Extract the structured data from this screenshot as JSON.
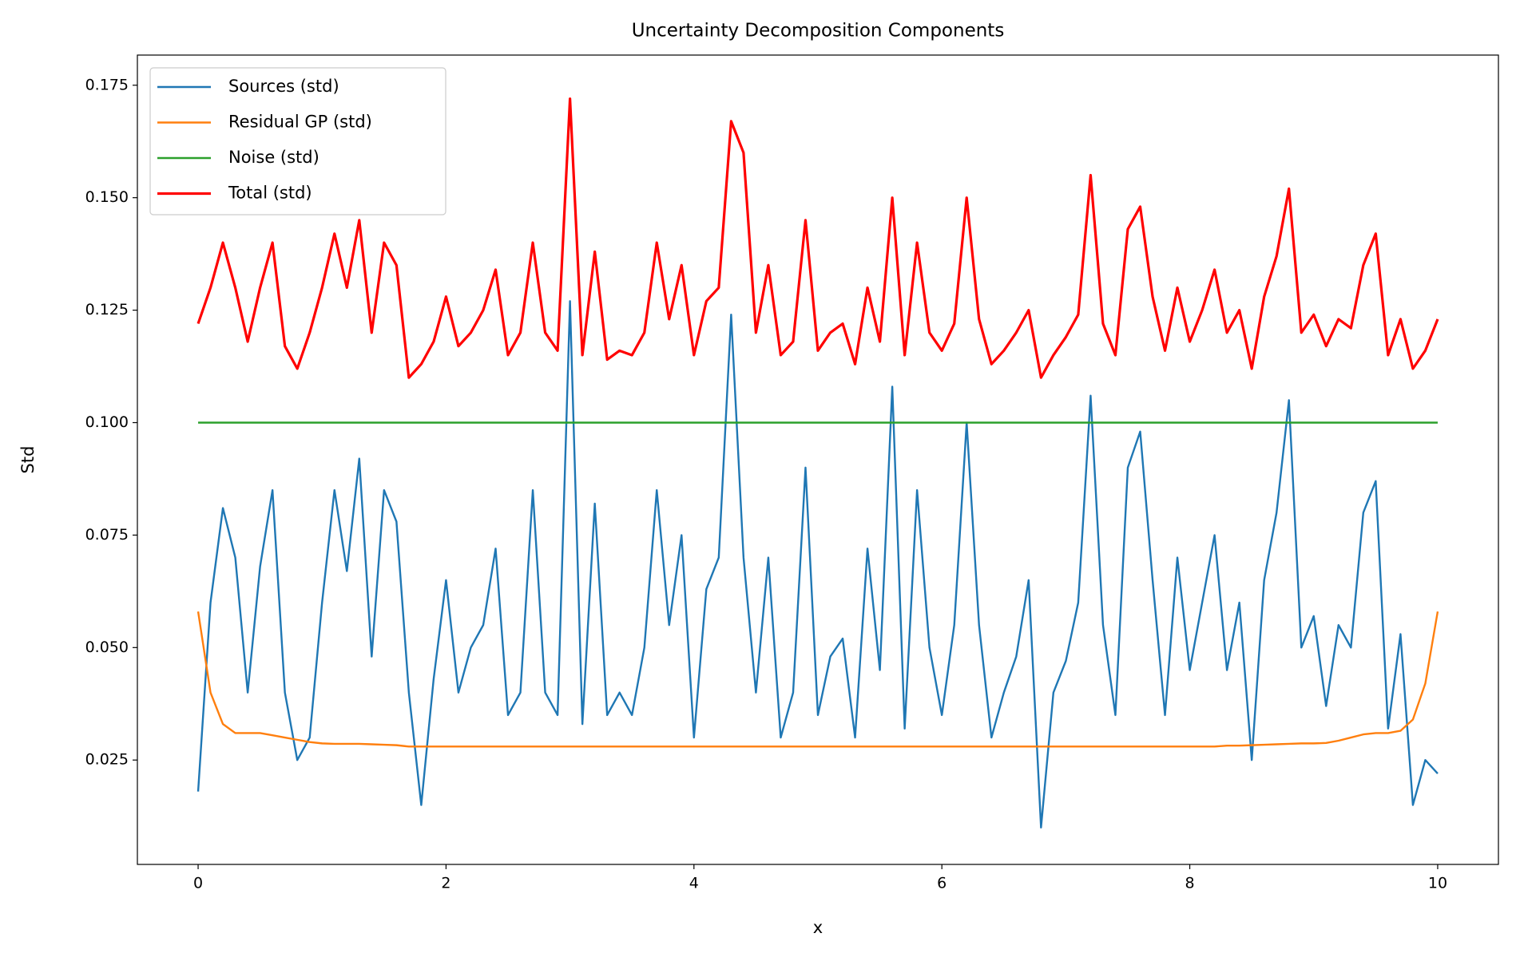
{
  "chart_data": {
    "type": "line",
    "title": "Uncertainty Decomposition Components",
    "xlabel": "x",
    "ylabel": "Std",
    "legend": "upper left",
    "grid": false,
    "xlim": [
      -0.49,
      10.49
    ],
    "ylim": [
      0.0018,
      0.1817
    ],
    "xticks": [
      0,
      2,
      4,
      6,
      8,
      10
    ],
    "yticks": [
      0.025,
      {
        "value": 0.05,
        "label": "0.050"
      },
      0.075,
      {
        "value": 0.1,
        "label": "0.100"
      },
      0.125,
      {
        "value": 0.15,
        "label": "0.150"
      },
      0.175
    ],
    "x": [
      0,
      0.1,
      0.2,
      0.3,
      0.4,
      0.5,
      0.6,
      0.7,
      0.8,
      0.9,
      1,
      1.1,
      1.2,
      1.3,
      1.4,
      1.5,
      1.6,
      1.7,
      1.8,
      1.9,
      2,
      2.1,
      2.2,
      2.3,
      2.4,
      2.5,
      2.6,
      2.7,
      2.8,
      2.9,
      3,
      3.1,
      3.2,
      3.3,
      3.4,
      3.5,
      3.6,
      3.7,
      3.8,
      3.9,
      4,
      4.1,
      4.2,
      4.3,
      4.4,
      4.5,
      4.6,
      4.7,
      4.8,
      4.9,
      5,
      5.1,
      5.2,
      5.3,
      5.4,
      5.5,
      5.6,
      5.7,
      5.8,
      5.9,
      6,
      6.1,
      6.2,
      6.3,
      6.4,
      6.5,
      6.6,
      6.7,
      6.8,
      6.9,
      7,
      7.1,
      7.2,
      7.3,
      7.4,
      7.5,
      7.6,
      7.7,
      7.8,
      7.9,
      8,
      8.1,
      8.2,
      8.3,
      8.4,
      8.5,
      8.6,
      8.7,
      8.8,
      8.9,
      9,
      9.1,
      9.2,
      9.3,
      9.4,
      9.5,
      9.6,
      9.7,
      9.8,
      9.9,
      10
    ],
    "series": [
      {
        "name": "Sources (std)",
        "color": "#1f77b4",
        "width": 2.4,
        "values": [
          0.018,
          0.06,
          0.081,
          0.07,
          0.04,
          0.068,
          0.085,
          0.04,
          0.025,
          0.03,
          0.06,
          0.085,
          0.067,
          0.092,
          0.048,
          0.085,
          0.078,
          0.04,
          0.015,
          0.043,
          0.065,
          0.04,
          0.05,
          0.055,
          0.072,
          0.035,
          0.04,
          0.085,
          0.04,
          0.035,
          0.127,
          0.033,
          0.082,
          0.035,
          0.04,
          0.035,
          0.05,
          0.085,
          0.055,
          0.075,
          0.03,
          0.063,
          0.07,
          0.124,
          0.07,
          0.04,
          0.07,
          0.03,
          0.04,
          0.09,
          0.035,
          0.048,
          0.052,
          0.03,
          0.072,
          0.045,
          0.108,
          0.032,
          0.085,
          0.05,
          0.035,
          0.055,
          0.1,
          0.055,
          0.03,
          0.04,
          0.048,
          0.065,
          0.01,
          0.04,
          0.047,
          0.06,
          0.106,
          0.055,
          0.035,
          0.09,
          0.098,
          0.065,
          0.035,
          0.07,
          0.045,
          0.06,
          0.075,
          0.045,
          0.06,
          0.025,
          0.065,
          0.08,
          0.105,
          0.05,
          0.057,
          0.037,
          0.055,
          0.05,
          0.08,
          0.087,
          0.032,
          0.053,
          0.015,
          0.025,
          0.022
        ]
      },
      {
        "name": "Residual GP (std)",
        "color": "#ff7f0e",
        "width": 2.4,
        "values": [
          0.058,
          0.04,
          0.033,
          0.031,
          0.031,
          0.031,
          0.0305,
          0.03,
          0.0295,
          0.029,
          0.0287,
          0.0286,
          0.0286,
          0.0286,
          0.0285,
          0.0284,
          0.0283,
          0.028,
          0.028,
          0.028,
          0.028,
          0.028,
          0.028,
          0.028,
          0.028,
          0.028,
          0.028,
          0.028,
          0.028,
          0.028,
          0.028,
          0.028,
          0.028,
          0.028,
          0.028,
          0.028,
          0.028,
          0.028,
          0.028,
          0.028,
          0.028,
          0.028,
          0.028,
          0.028,
          0.028,
          0.028,
          0.028,
          0.028,
          0.028,
          0.028,
          0.028,
          0.028,
          0.028,
          0.028,
          0.028,
          0.028,
          0.028,
          0.028,
          0.028,
          0.028,
          0.028,
          0.028,
          0.028,
          0.028,
          0.028,
          0.028,
          0.028,
          0.028,
          0.028,
          0.028,
          0.028,
          0.028,
          0.028,
          0.028,
          0.028,
          0.028,
          0.028,
          0.028,
          0.028,
          0.028,
          0.028,
          0.028,
          0.028,
          0.0282,
          0.0282,
          0.0283,
          0.0284,
          0.0285,
          0.0286,
          0.0287,
          0.0287,
          0.0288,
          0.0293,
          0.03,
          0.0307,
          0.031,
          0.031,
          0.0315,
          0.034,
          0.042,
          0.058
        ]
      },
      {
        "name": "Noise (std)",
        "color": "#2ca02c",
        "width": 2.4,
        "values": [
          0.1,
          0.1,
          0.1,
          0.1,
          0.1,
          0.1,
          0.1,
          0.1,
          0.1,
          0.1,
          0.1,
          0.1,
          0.1,
          0.1,
          0.1,
          0.1,
          0.1,
          0.1,
          0.1,
          0.1,
          0.1,
          0.1,
          0.1,
          0.1,
          0.1,
          0.1,
          0.1,
          0.1,
          0.1,
          0.1,
          0.1,
          0.1,
          0.1,
          0.1,
          0.1,
          0.1,
          0.1,
          0.1,
          0.1,
          0.1,
          0.1,
          0.1,
          0.1,
          0.1,
          0.1,
          0.1,
          0.1,
          0.1,
          0.1,
          0.1,
          0.1,
          0.1,
          0.1,
          0.1,
          0.1,
          0.1,
          0.1,
          0.1,
          0.1,
          0.1,
          0.1,
          0.1,
          0.1,
          0.1,
          0.1,
          0.1,
          0.1,
          0.1,
          0.1,
          0.1,
          0.1,
          0.1,
          0.1,
          0.1,
          0.1,
          0.1,
          0.1,
          0.1,
          0.1,
          0.1,
          0.1,
          0.1,
          0.1,
          0.1,
          0.1,
          0.1,
          0.1,
          0.1,
          0.1,
          0.1,
          0.1,
          0.1,
          0.1,
          0.1,
          0.1,
          0.1,
          0.1,
          0.1,
          0.1,
          0.1,
          0.1
        ]
      },
      {
        "name": "Total (std)",
        "color": "#ff0000",
        "width": 3.2,
        "values": [
          0.122,
          0.13,
          0.14,
          0.13,
          0.118,
          0.13,
          0.14,
          0.117,
          0.112,
          0.12,
          0.13,
          0.142,
          0.13,
          0.145,
          0.12,
          0.14,
          0.135,
          0.11,
          0.113,
          0.118,
          0.128,
          0.117,
          0.12,
          0.125,
          0.134,
          0.115,
          0.12,
          0.14,
          0.12,
          0.116,
          0.172,
          0.115,
          0.138,
          0.114,
          0.116,
          0.115,
          0.12,
          0.14,
          0.123,
          0.135,
          0.115,
          0.127,
          0.13,
          0.167,
          0.16,
          0.12,
          0.135,
          0.115,
          0.118,
          0.145,
          0.116,
          0.12,
          0.122,
          0.113,
          0.13,
          0.118,
          0.15,
          0.115,
          0.14,
          0.12,
          0.116,
          0.122,
          0.15,
          0.123,
          0.113,
          0.116,
          0.12,
          0.125,
          0.11,
          0.115,
          0.119,
          0.124,
          0.155,
          0.122,
          0.115,
          0.143,
          0.148,
          0.128,
          0.116,
          0.13,
          0.118,
          0.125,
          0.134,
          0.12,
          0.125,
          0.112,
          0.128,
          0.137,
          0.152,
          0.12,
          0.124,
          0.117,
          0.123,
          0.121,
          0.135,
          0.142,
          0.115,
          0.123,
          0.112,
          0.116,
          0.123
        ]
      }
    ]
  }
}
